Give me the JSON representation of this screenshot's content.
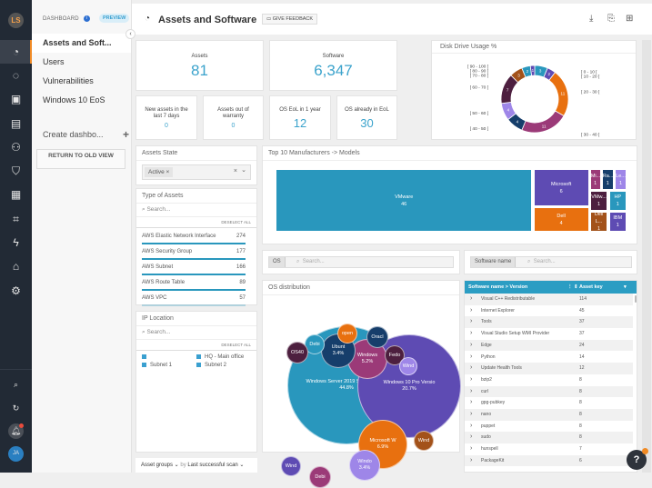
{
  "rail": {
    "logo": "LS",
    "icons": [
      "dashboard-icon",
      "reports-icon",
      "monitor-icon",
      "software-icon",
      "users-icon",
      "shield-icon",
      "chart-icon",
      "diagram-icon",
      "lightning-icon",
      "store-icon",
      "gear-icon"
    ],
    "avatar": "JA"
  },
  "nav": {
    "header": "DASHBOARD",
    "preview": "PREVIEW",
    "items": [
      "Assets and Soft...",
      "Users",
      "Vulnerabilities",
      "Windows 10 EoS"
    ],
    "create": "Create dashbo...",
    "return": "RETURN TO OLD VIEW"
  },
  "header": {
    "title": "Assets and Software",
    "feedback": "GIVE FEEDBACK"
  },
  "kpis": {
    "assets": {
      "label": "Assets",
      "value": "81"
    },
    "software": {
      "label": "Software",
      "value": "6,347"
    },
    "new": {
      "label": "New assets in the last 7 days",
      "value": "0"
    },
    "warranty": {
      "label": "Assets out of warranty",
      "value": "0"
    },
    "eol1": {
      "label": "OS EoL in 1 year",
      "value": "12"
    },
    "eol": {
      "label": "OS already in EoL",
      "value": "30"
    }
  },
  "assets_state": {
    "title": "Assets State",
    "chip": "Active",
    "chip_remove": "×",
    "clear": "×",
    "dropdown": "⌄"
  },
  "type_of_assets": {
    "title": "Type of Assets",
    "search": "Search...",
    "deselect": "DESELECT ALL",
    "items": [
      {
        "label": "AWS Elastic Network Interface",
        "count": "274",
        "frac": 1
      },
      {
        "label": "AWS Security Group",
        "count": "177",
        "frac": 1
      },
      {
        "label": "AWS Subnet",
        "count": "166",
        "frac": 1
      },
      {
        "label": "AWS Route Table",
        "count": "89",
        "frac": 1
      },
      {
        "label": "AWS VPC",
        "count": "57",
        "frac": 0.3
      }
    ]
  },
  "ip_location": {
    "title": "IP Location",
    "search": "Search...",
    "deselect": "DESELECT ALL",
    "items": [
      "",
      "HQ - Main office",
      "Subnet 1",
      "Subnet 2"
    ]
  },
  "footer": {
    "group": "Asset groups ⌄",
    "by": "by",
    "sort": "Last successful scan ⌄"
  },
  "treemap": {
    "title": "Top 10 Manufacturers -> Models",
    "items": [
      {
        "label": "VMware",
        "value": "46",
        "color": "#2997bd"
      },
      {
        "label": "Microsoft",
        "value": "6",
        "color": "#5e4bb3"
      },
      {
        "label": "Dell",
        "value": "4",
        "color": "#e8700f"
      },
      {
        "label": "Mi...",
        "value": "1",
        "color": "#9b3a78"
      },
      {
        "label": "Ra...",
        "value": "1",
        "color": "#163e6b"
      },
      {
        "label": "Le...",
        "value": "1",
        "color": "#9e86e8"
      },
      {
        "label": "VMw...",
        "value": "1",
        "color": "#4d1f3f"
      },
      {
        "label": "HP",
        "value": "1",
        "color": "#2997bd"
      },
      {
        "label": "Dell L...",
        "value": "1",
        "color": "#a3521a"
      },
      {
        "label": "IBM",
        "value": "1",
        "color": "#5e4bb3"
      }
    ]
  },
  "disk": {
    "title": "Disk Drive Usage %",
    "chart_data": {
      "type": "pie",
      "categories": [
        "[ 0 - 10 [",
        "[ 10 - 20 [",
        "[ 20 - 30 [",
        "[ 30 - 40 [",
        "[ 40 - 50 [",
        "[ 50 - 60 [",
        "[ 60 - 70 [",
        "[ 70 - 80 [",
        "[ 80 - 90 [",
        "[ 90 - 100 ["
      ],
      "values": [
        3,
        2,
        11,
        11,
        4,
        4,
        7,
        3,
        2,
        1
      ],
      "colors": [
        "#2997bd",
        "#5e4bb3",
        "#e8700f",
        "#9b3a78",
        "#163e6b",
        "#9e86e8",
        "#4d1f3f",
        "#a3521a",
        "#2997bd",
        "#5e4bb3"
      ]
    }
  },
  "os_filter": {
    "tag": "OS",
    "placeholder": "Search..."
  },
  "sw_filter": {
    "tag": "Software name",
    "placeholder": "Search..."
  },
  "os_dist": {
    "title": "OS distribution",
    "bubbles": [
      {
        "label": "Windows Server 2019 Standard (18(",
        "pct": "44.8%",
        "color": "#2997bd"
      },
      {
        "label": "Windows 10 Pro Versio",
        "pct": "20.7%",
        "color": "#5e4bb3"
      },
      {
        "label": "Microsoft W",
        "pct": "6.9%",
        "color": "#e8700f"
      },
      {
        "label": "Windows",
        "pct": "5.2%",
        "color": "#9b3a78"
      },
      {
        "label": "Ubunt",
        "pct": "3.4%",
        "color": "#163e6b"
      },
      {
        "label": "Windo",
        "pct": "3.4%",
        "color": "#9e86e8"
      },
      {
        "label": "Debi",
        "pct": "",
        "color": "#2997bd"
      },
      {
        "label": "OS40",
        "pct": "",
        "color": "#4d1f3f"
      },
      {
        "label": "open",
        "pct": "",
        "color": "#e8700f"
      },
      {
        "label": "Oracl",
        "pct": "",
        "color": "#163e6b"
      },
      {
        "label": "Fedo",
        "pct": "",
        "color": "#4d1f3f"
      },
      {
        "label": "Wind",
        "pct": "",
        "color": "#9e86e8"
      },
      {
        "label": "Wind",
        "pct": "",
        "color": "#a3521a"
      },
      {
        "label": "Wind",
        "pct": "",
        "color": "#5e4bb3"
      },
      {
        "label": "Debi",
        "pct": "",
        "color": "#9b3a78"
      }
    ]
  },
  "software_table": {
    "col1": "Software name > Version",
    "col2": "Asset key",
    "rows": [
      [
        "Visual C++ Redistributable",
        "114"
      ],
      [
        "Internet Explorer",
        "45"
      ],
      [
        "Tools",
        "37"
      ],
      [
        "Visual Studio Setup WMI Provider",
        "37"
      ],
      [
        "Edge",
        "24"
      ],
      [
        "Python",
        "14"
      ],
      [
        "Update Health Tools",
        "12"
      ],
      [
        "bzip2",
        "8"
      ],
      [
        "curl",
        "8"
      ],
      [
        "gpg-pubkey",
        "8"
      ],
      [
        "nano",
        "8"
      ],
      [
        "puppet",
        "8"
      ],
      [
        "sudo",
        "8"
      ],
      [
        "hunspell",
        "7"
      ],
      [
        "PackageKit",
        "6"
      ]
    ]
  },
  "help": "?"
}
